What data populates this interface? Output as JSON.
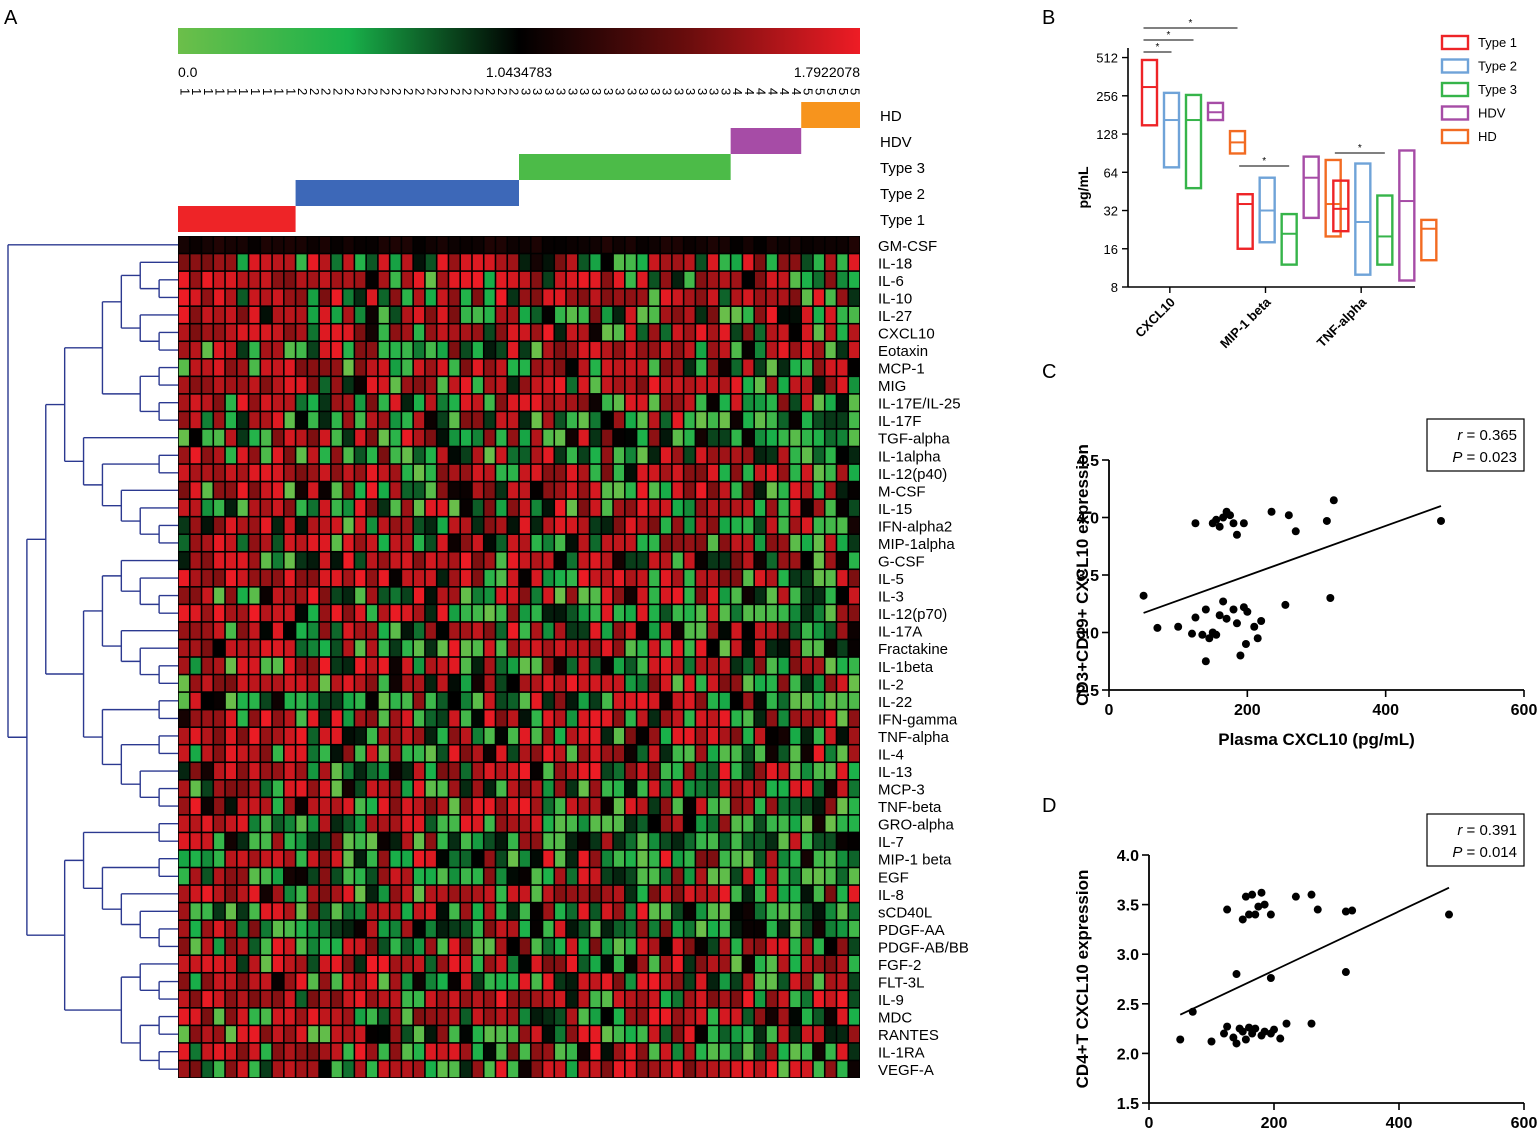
{
  "panel_labels": {
    "a": "A",
    "b": "B",
    "c": "C",
    "d": "D"
  },
  "chart_data": [
    {
      "panel": "A",
      "type": "heatmap",
      "colorbar": {
        "colors": [
          "#6cbf4a",
          "#19b14a",
          "#000000",
          "#6b0d0d",
          "#ee1c25"
        ],
        "ticks": [
          "0.0",
          "1.0434783",
          "1.7922078"
        ]
      },
      "column_groups": [
        "1",
        "1",
        "1",
        "1",
        "1",
        "1",
        "1",
        "1",
        "1",
        "1",
        "2",
        "2",
        "2",
        "2",
        "2",
        "2",
        "2",
        "2",
        "2",
        "2",
        "2",
        "2",
        "2",
        "2",
        "2",
        "2",
        "2",
        "2",
        "2",
        "3",
        "3",
        "3",
        "3",
        "3",
        "3",
        "3",
        "3",
        "3",
        "3",
        "3",
        "3",
        "3",
        "3",
        "3",
        "3",
        "3",
        "3",
        "4",
        "4",
        "4",
        "4",
        "4",
        "4",
        "5",
        "5",
        "5",
        "5",
        "5"
      ],
      "group_labels": [
        {
          "label": "HD",
          "color": "#f7941d"
        },
        {
          "label": "HDV",
          "color": "#a64ca6"
        },
        {
          "label": "Type 3",
          "color": "#4cbb48"
        },
        {
          "label": "Type 2",
          "color": "#3d68b8"
        },
        {
          "label": "Type 1",
          "color": "#ee2427"
        }
      ],
      "rows": [
        "GM-CSF",
        "IL-18",
        "IL-6",
        "IL-10",
        "IL-27",
        "CXCL10",
        "Eotaxin",
        "MCP-1",
        "MIG",
        "IL-17E/IL-25",
        "IL-17F",
        "TGF-alpha",
        "IL-1alpha",
        "IL-12(p40)",
        "M-CSF",
        "IL-15",
        "IFN-alpha2",
        "MIP-1alpha",
        "G-CSF",
        "IL-5",
        "IL-3",
        "IL-12(p70)",
        "IL-17A",
        "Fractakine",
        "IL-1beta",
        "IL-2",
        "IL-22",
        "IFN-gamma",
        "TNF-alpha",
        "IL-4",
        "IL-13",
        "MCP-3",
        "TNF-beta",
        "GRO-alpha",
        "IL-7",
        "MIP-1 beta",
        "EGF",
        "IL-8",
        "sCD40L",
        "PDGF-AA",
        "PDGF-AB/BB",
        "FGF-2",
        "FLT-3L",
        "IL-9",
        "MDC",
        "RANTES",
        "IL-1RA",
        "VEGF-A"
      ]
    },
    {
      "panel": "B",
      "type": "box",
      "ylabel": "pg/mL",
      "y_scale": "log2",
      "yticks": [
        8,
        16,
        32,
        64,
        128,
        256,
        512
      ],
      "categories": [
        "CXCL10",
        "MIP-1 beta",
        "TNF-alpha"
      ],
      "series": [
        {
          "name": "Type 1",
          "color": "#ee2427",
          "boxes": [
            {
              "min": 150,
              "median": 300,
              "max": 490
            },
            {
              "min": 16,
              "median": 36,
              "max": 43
            },
            {
              "min": 22,
              "median": 33,
              "max": 55
            }
          ]
        },
        {
          "name": "Type 2",
          "color": "#6fa3d8",
          "boxes": [
            {
              "min": 70,
              "median": 165,
              "max": 270
            },
            {
              "min": 18,
              "median": 32,
              "max": 58
            },
            {
              "min": 10,
              "median": 26,
              "max": 75
            }
          ]
        },
        {
          "name": "Type 3",
          "color": "#36b44a",
          "boxes": [
            {
              "min": 48,
              "median": 165,
              "max": 260
            },
            {
              "min": 12,
              "median": 21,
              "max": 30
            },
            {
              "min": 12,
              "median": 20,
              "max": 42
            }
          ]
        },
        {
          "name": "HDV",
          "color": "#a64ca6",
          "boxes": [
            {
              "min": 165,
              "median": 190,
              "max": 225
            },
            {
              "min": 28,
              "median": 58,
              "max": 85
            },
            {
              "min": 9,
              "median": 38,
              "max": 95
            }
          ]
        },
        {
          "name": "HD",
          "color": "#f26b22",
          "boxes": [
            {
              "min": 90,
              "median": 110,
              "max": 135
            },
            {
              "min": 20,
              "median": 36,
              "max": 80
            },
            {
              "min": 13,
              "median": 23,
              "max": 27
            }
          ]
        }
      ],
      "significance": [
        {
          "category": "CXCL10",
          "from": 0,
          "to": 1,
          "label": "*"
        },
        {
          "category": "CXCL10",
          "from": 0,
          "to": 2,
          "label": "*"
        },
        {
          "category": "CXCL10",
          "from": 0,
          "to": 4,
          "label": "*"
        },
        {
          "category": "MIP-1 beta",
          "from": 0,
          "to": 2,
          "label": "*"
        },
        {
          "category": "TNF-alpha",
          "from": 0,
          "to": 2,
          "label": "*"
        }
      ]
    },
    {
      "panel": "C",
      "type": "scatter",
      "xlabel": "Plasma CXCL10 (pg/mL)",
      "ylabel": "CD3+CD19+ CXCL10 expression",
      "xlim": [
        0,
        600
      ],
      "ylim": [
        2.5,
        4.5
      ],
      "xticks": [
        0,
        200,
        400,
        600
      ],
      "yticks": [
        2.5,
        3.0,
        3.5,
        4.0,
        4.5
      ],
      "stats": {
        "r_label": "r",
        "r_value": "= 0.365",
        "p_label": "P",
        "p_value": "= 0.023"
      },
      "regression": [
        [
          50,
          3.17
        ],
        [
          480,
          4.1
        ]
      ],
      "points": [
        [
          125,
          3.95
        ],
        [
          150,
          3.95
        ],
        [
          155,
          3.98
        ],
        [
          160,
          3.92
        ],
        [
          165,
          4.0
        ],
        [
          170,
          4.05
        ],
        [
          175,
          4.02
        ],
        [
          180,
          3.95
        ],
        [
          185,
          3.85
        ],
        [
          195,
          3.95
        ],
        [
          235,
          4.05
        ],
        [
          260,
          4.02
        ],
        [
          270,
          3.88
        ],
        [
          315,
          3.97
        ],
        [
          325,
          4.15
        ],
        [
          480,
          3.97
        ],
        [
          50,
          3.32
        ],
        [
          70,
          3.04
        ],
        [
          100,
          3.05
        ],
        [
          120,
          2.99
        ],
        [
          125,
          3.13
        ],
        [
          135,
          2.98
        ],
        [
          140,
          3.2
        ],
        [
          145,
          2.95
        ],
        [
          150,
          3.0
        ],
        [
          155,
          2.98
        ],
        [
          160,
          3.15
        ],
        [
          165,
          3.27
        ],
        [
          170,
          3.12
        ],
        [
          180,
          3.2
        ],
        [
          185,
          3.08
        ],
        [
          190,
          2.8
        ],
        [
          195,
          3.22
        ],
        [
          198,
          2.9
        ],
        [
          200,
          3.18
        ],
        [
          210,
          3.05
        ],
        [
          215,
          2.95
        ],
        [
          220,
          3.1
        ],
        [
          140,
          2.75
        ],
        [
          255,
          3.24
        ],
        [
          320,
          3.3
        ]
      ]
    },
    {
      "panel": "D",
      "type": "scatter",
      "xlabel": "",
      "ylabel": "CD4+T CXCL10 expression",
      "xlim": [
        0,
        600
      ],
      "ylim": [
        1.5,
        4.0
      ],
      "xticks": [
        0,
        200,
        400,
        600
      ],
      "yticks": [
        1.5,
        2.0,
        2.5,
        3.0,
        3.5,
        4.0
      ],
      "stats": {
        "r_label": "r",
        "r_value": "= 0.391",
        "p_label": "P",
        "p_value": "= 0.014"
      },
      "regression": [
        [
          50,
          2.39
        ],
        [
          480,
          3.67
        ]
      ],
      "points": [
        [
          125,
          3.45
        ],
        [
          150,
          3.35
        ],
        [
          155,
          3.58
        ],
        [
          160,
          3.4
        ],
        [
          165,
          3.6
        ],
        [
          170,
          3.4
        ],
        [
          175,
          3.48
        ],
        [
          180,
          3.62
        ],
        [
          185,
          3.5
        ],
        [
          195,
          3.4
        ],
        [
          235,
          3.58
        ],
        [
          260,
          3.6
        ],
        [
          270,
          3.45
        ],
        [
          315,
          3.43
        ],
        [
          325,
          3.44
        ],
        [
          480,
          3.4
        ],
        [
          140,
          2.8
        ],
        [
          195,
          2.76
        ],
        [
          315,
          2.82
        ],
        [
          50,
          2.14
        ],
        [
          70,
          2.42
        ],
        [
          100,
          2.12
        ],
        [
          120,
          2.2
        ],
        [
          125,
          2.27
        ],
        [
          135,
          2.16
        ],
        [
          140,
          2.1
        ],
        [
          145,
          2.25
        ],
        [
          150,
          2.22
        ],
        [
          155,
          2.14
        ],
        [
          160,
          2.26
        ],
        [
          165,
          2.2
        ],
        [
          170,
          2.25
        ],
        [
          180,
          2.18
        ],
        [
          185,
          2.22
        ],
        [
          195,
          2.2
        ],
        [
          200,
          2.24
        ],
        [
          210,
          2.15
        ],
        [
          220,
          2.3
        ],
        [
          260,
          2.3
        ]
      ]
    }
  ]
}
